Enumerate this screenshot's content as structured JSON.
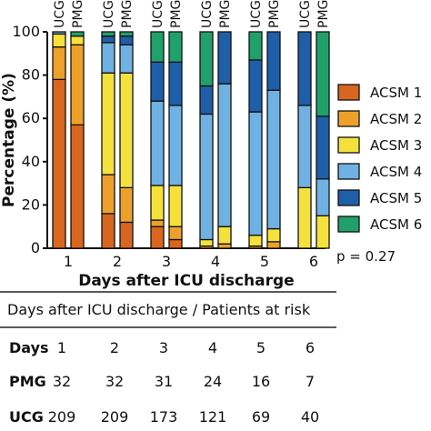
{
  "chart_data": {
    "type": "bar",
    "stacked": true,
    "categories": [
      "1",
      "2",
      "3",
      "4",
      "5",
      "6"
    ],
    "groups": [
      "UCG",
      "PMG"
    ],
    "xlabel": "Days after ICU discharge",
    "ylabel": "Percentage (%)",
    "ylim": [
      0,
      100
    ],
    "yticks": [
      "0",
      "20",
      "40",
      "60",
      "80",
      "100"
    ],
    "grid": false,
    "legend_position": "right",
    "series": [
      {
        "name": "ACSM 1",
        "color": "#d9661f",
        "UCG": [
          78,
          16,
          10,
          0,
          0,
          0
        ],
        "PMG": [
          57,
          12,
          4,
          0,
          0,
          0
        ]
      },
      {
        "name": "ACSM 2",
        "color": "#eea12a",
        "UCG": [
          15,
          18,
          3,
          1,
          1,
          0
        ],
        "PMG": [
          37,
          16,
          6,
          2,
          3,
          0
        ]
      },
      {
        "name": "ACSM 3",
        "color": "#f5e13b",
        "UCG": [
          6,
          47,
          16,
          3,
          5,
          28
        ],
        "PMG": [
          4,
          53,
          19,
          8,
          6,
          15
        ]
      },
      {
        "name": "ACSM 4",
        "color": "#6fb1e3",
        "UCG": [
          1,
          14,
          39,
          58,
          57,
          38
        ],
        "PMG": [
          0,
          13,
          37,
          66,
          64,
          17
        ]
      },
      {
        "name": "ACSM 5",
        "color": "#1f5ea8",
        "UCG": [
          0,
          3,
          18,
          13,
          24,
          34
        ],
        "PMG": [
          0,
          4,
          20,
          24,
          27,
          29
        ]
      },
      {
        "name": "ACSM 6",
        "color": "#20a06b",
        "UCG": [
          0,
          2,
          14,
          25,
          13,
          0
        ],
        "PMG": [
          2,
          2,
          14,
          0,
          0,
          39
        ]
      }
    ],
    "annotation": "p = 0.27"
  },
  "table": {
    "title": "Days after ICU discharge / Patients at risk",
    "rows": [
      {
        "label": "Days",
        "values": [
          "1",
          "2",
          "3",
          "4",
          "5",
          "6"
        ]
      },
      {
        "label": "PMG",
        "values": [
          "32",
          "32",
          "31",
          "24",
          "16",
          "7"
        ]
      },
      {
        "label": "UCG",
        "values": [
          "209",
          "209",
          "173",
          "121",
          "69",
          "40"
        ]
      }
    ]
  }
}
